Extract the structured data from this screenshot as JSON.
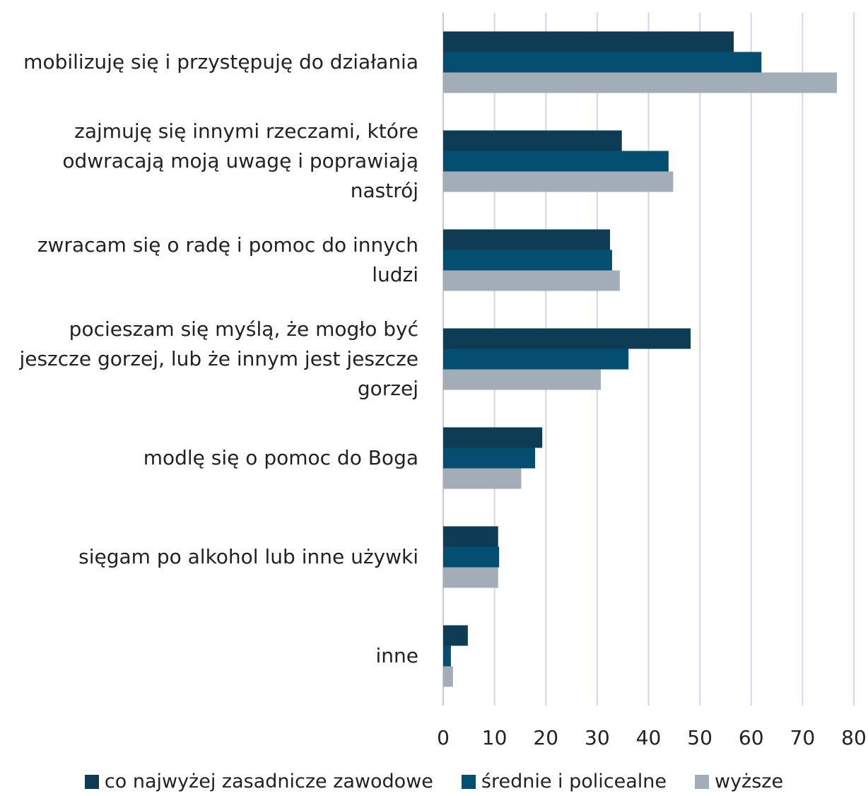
{
  "chart_data": {
    "type": "barh",
    "categories": [
      "mobilizuję się i przystępuję do działania",
      "zajmuję się innymi rzeczami, które\nodwracają moją uwagę i poprawiają\nnastrój",
      "zwracam się o radę i pomoc do innych\nludzi",
      "pocieszam się myślą, że mogło być\njeszcze gorzej, lub że innym jest jeszcze\ngorzej",
      "modlę się o pomoc do Boga",
      "sięgam po alkohol lub inne używki",
      "inne"
    ],
    "series": [
      {
        "name": "co najwyżej zasadnicze zawodowe",
        "color": "#0e3c55",
        "values": [
          56.6,
          34.8,
          32.5,
          48.2,
          19.3,
          10.7,
          4.8
        ]
      },
      {
        "name": "średnie i policealne",
        "color": "#044e72",
        "values": [
          62,
          43.9,
          32.9,
          36.1,
          17.9,
          10.9,
          1.5
        ]
      },
      {
        "name": "wyższe",
        "color": "#a3adb8",
        "values": [
          76.7,
          44.8,
          34.4,
          30.7,
          15.2,
          10.7,
          1.9
        ]
      }
    ],
    "xlim": [
      0,
      80
    ],
    "xticks": [
      0,
      10,
      20,
      30,
      40,
      50,
      60,
      70,
      80
    ],
    "grid": true,
    "legend": "bottom"
  }
}
